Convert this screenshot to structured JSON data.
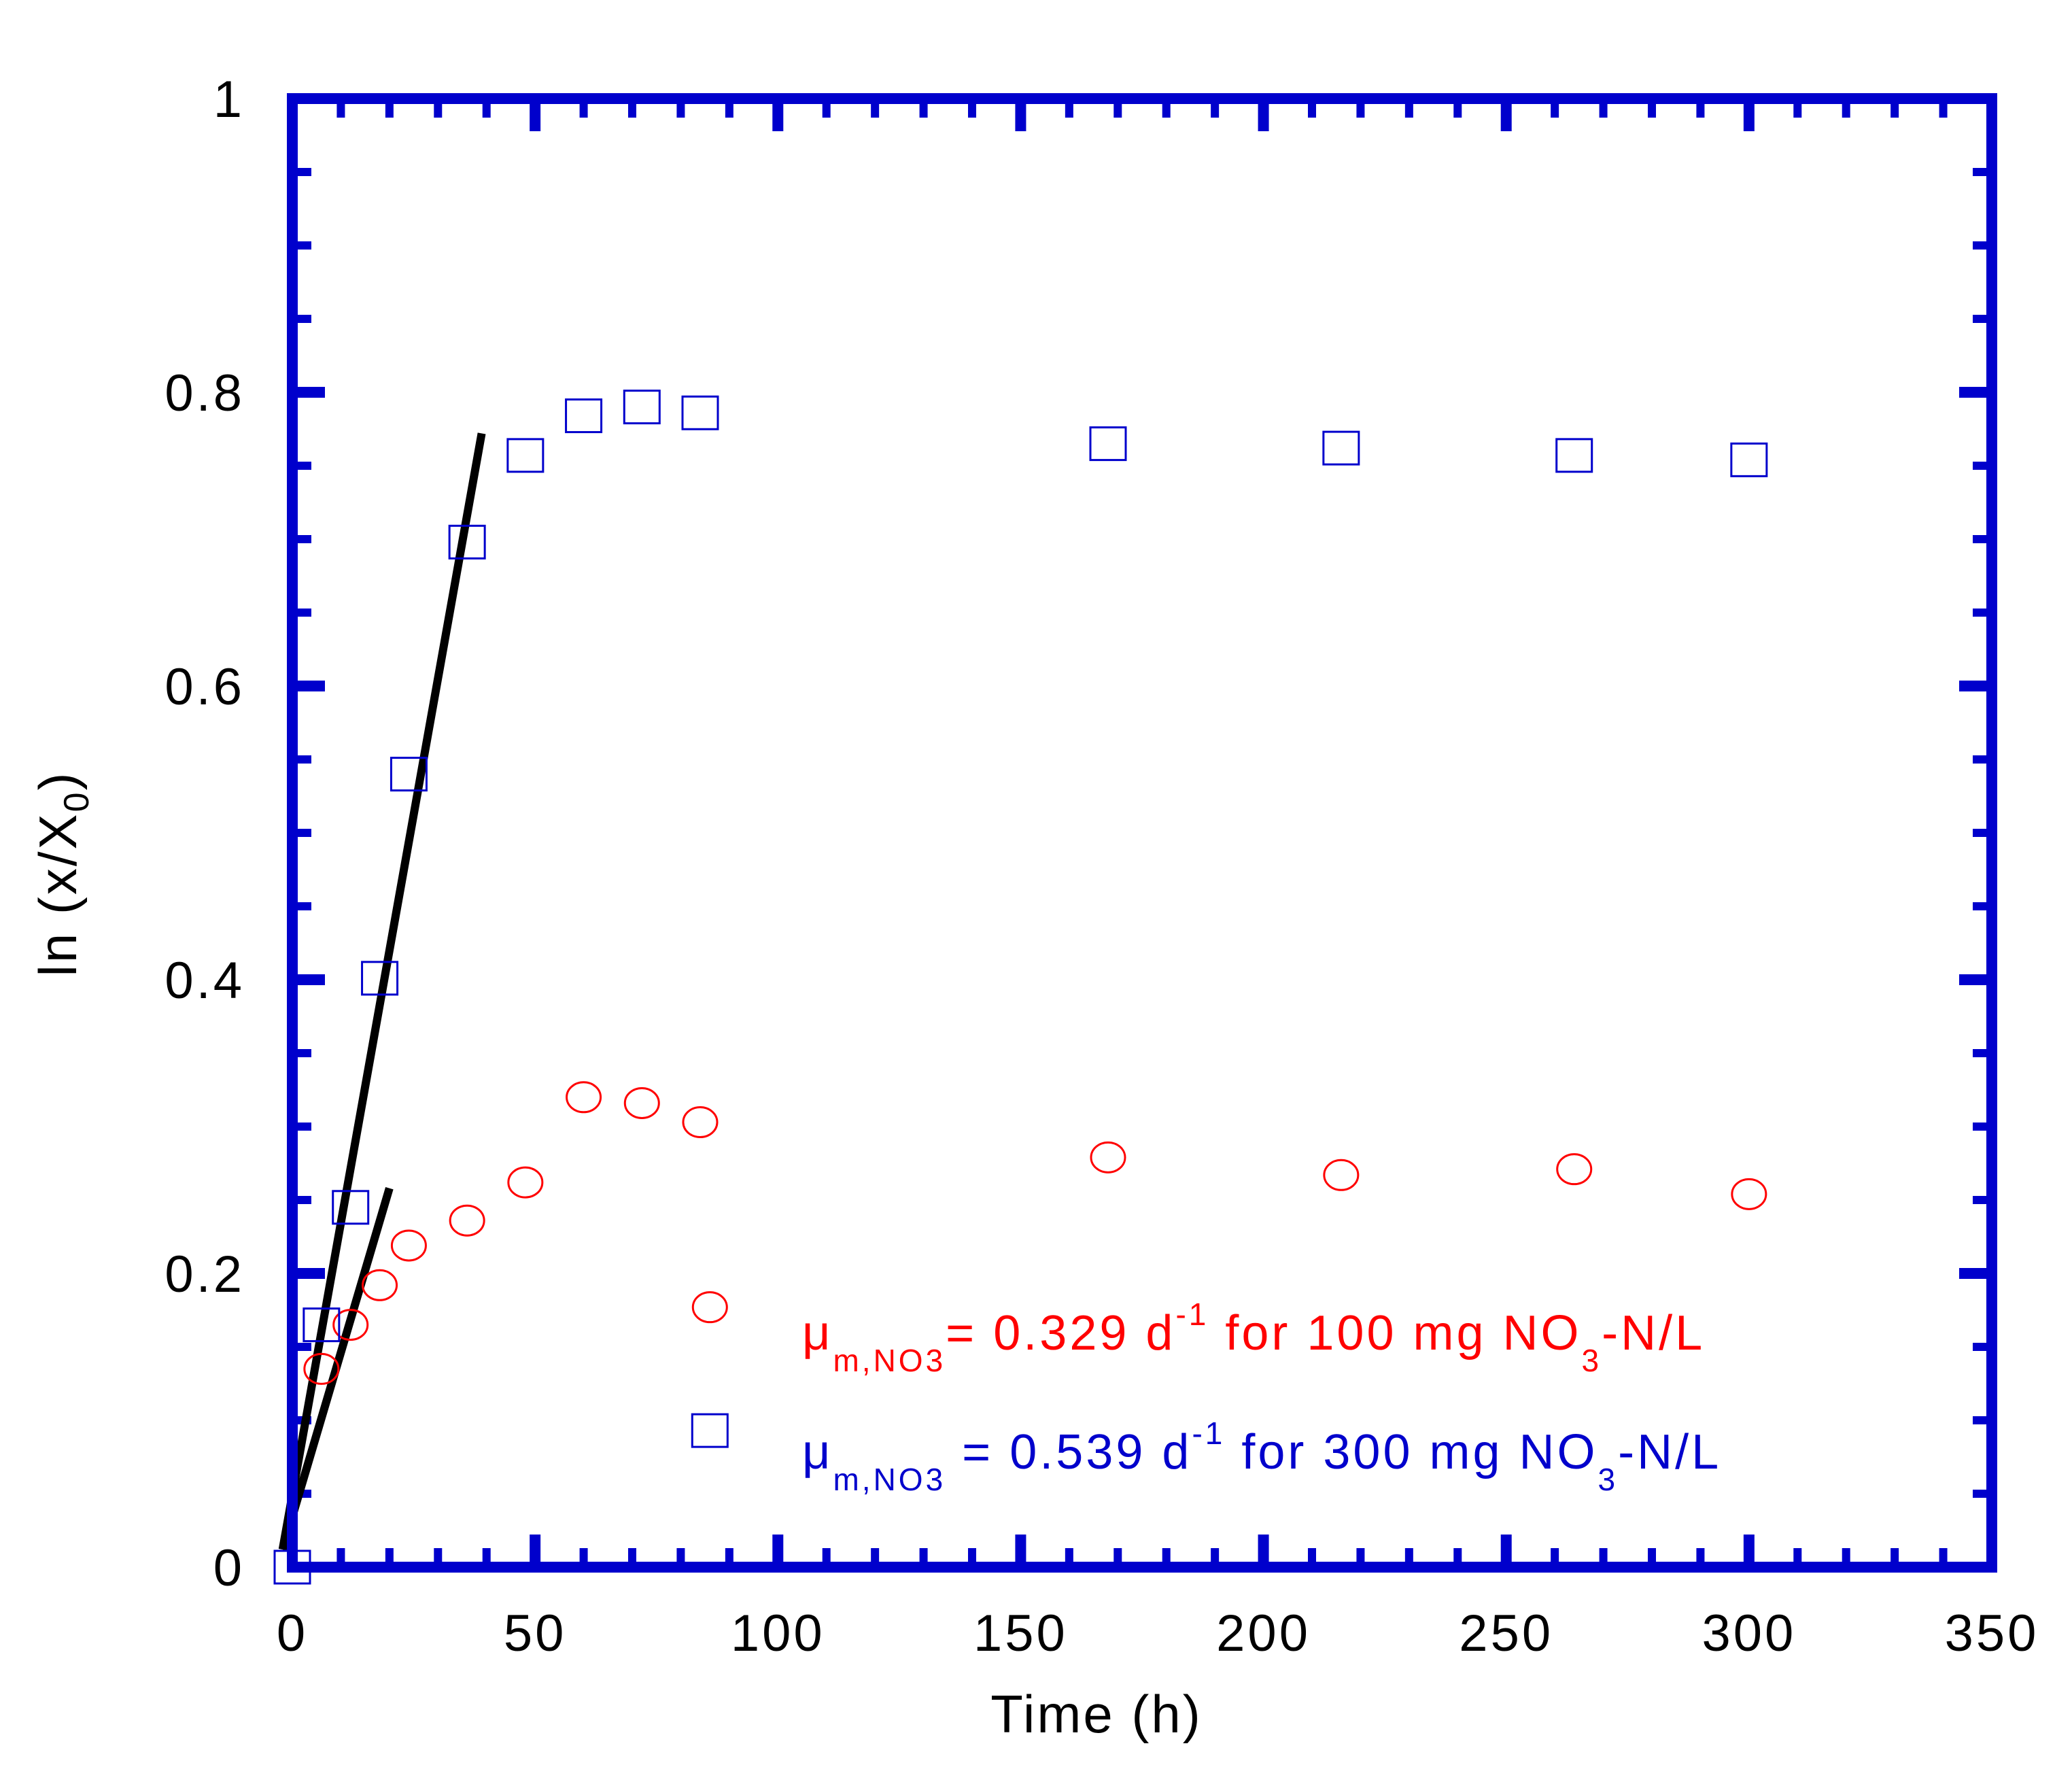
{
  "chart_data": {
    "type": "scatter",
    "xlabel": "Time (h)",
    "ylabel": {
      "main": "ln (x/X",
      "sub": "0",
      "close": ")"
    },
    "xlim": [
      0,
      350
    ],
    "ylim": [
      0,
      1
    ],
    "x_ticks": [
      0,
      50,
      100,
      150,
      200,
      250,
      300,
      350
    ],
    "x_tick_labels": [
      "0",
      "50",
      "100",
      "150",
      "200",
      "250",
      "300",
      "350"
    ],
    "y_ticks": [
      0,
      0.2,
      0.4,
      0.6,
      0.8,
      1
    ],
    "y_tick_labels": [
      "0",
      "0.2",
      "0.4",
      "0.6",
      "0.8",
      "1"
    ],
    "grid": false,
    "frame_color": "#0000cc",
    "series": [
      {
        "name": "100 mg NO3-N/L",
        "marker": "circle",
        "color": "#ff0000",
        "points": [
          {
            "x": 6,
            "y": 0.135
          },
          {
            "x": 12,
            "y": 0.165
          },
          {
            "x": 18,
            "y": 0.192
          },
          {
            "x": 24,
            "y": 0.219
          },
          {
            "x": 36,
            "y": 0.236
          },
          {
            "x": 48,
            "y": 0.262
          },
          {
            "x": 60,
            "y": 0.32
          },
          {
            "x": 72,
            "y": 0.316
          },
          {
            "x": 84,
            "y": 0.303
          },
          {
            "x": 86,
            "y": 0.177
          },
          {
            "x": 168,
            "y": 0.279
          },
          {
            "x": 216,
            "y": 0.267
          },
          {
            "x": 264,
            "y": 0.271
          },
          {
            "x": 300,
            "y": 0.254
          }
        ]
      },
      {
        "name": "300 mg NO3-N/L",
        "marker": "square",
        "color": "#0000cc",
        "points": [
          {
            "x": 0,
            "y": 0.0
          },
          {
            "x": 6,
            "y": 0.165
          },
          {
            "x": 12,
            "y": 0.245
          },
          {
            "x": 18,
            "y": 0.401
          },
          {
            "x": 24,
            "y": 0.54
          },
          {
            "x": 36,
            "y": 0.698
          },
          {
            "x": 48,
            "y": 0.757
          },
          {
            "x": 60,
            "y": 0.784
          },
          {
            "x": 72,
            "y": 0.79
          },
          {
            "x": 84,
            "y": 0.786
          },
          {
            "x": 86,
            "y": 0.093
          },
          {
            "x": 168,
            "y": 0.765
          },
          {
            "x": 216,
            "y": 0.762
          },
          {
            "x": 264,
            "y": 0.757
          },
          {
            "x": 300,
            "y": 0.754
          }
        ]
      }
    ],
    "fit_lines": [
      {
        "name": "fit-100",
        "color": "#000000",
        "x": [
          -2,
          20
        ],
        "y": [
          0.012,
          0.258
        ]
      },
      {
        "name": "fit-300",
        "color": "#000000",
        "x": [
          -2,
          39
        ],
        "y": [
          0.012,
          0.772
        ]
      }
    ],
    "annotations": [
      {
        "color": "#ff0000",
        "mu": "μ",
        "mu_sub": "m,NO3",
        "eq": "= 0.329 d",
        "d_sup": "-1",
        "mid": " for 100 mg NO",
        "no_sub": "3",
        "tail": "-N/L"
      },
      {
        "color": "#0000cc",
        "mu": "μ",
        "mu_sub": "m,NO3",
        "eq": " = 0.539 d",
        "d_sup": "-1",
        "mid": " for 300 mg NO",
        "no_sub": "3",
        "tail": "-N/L"
      }
    ]
  }
}
